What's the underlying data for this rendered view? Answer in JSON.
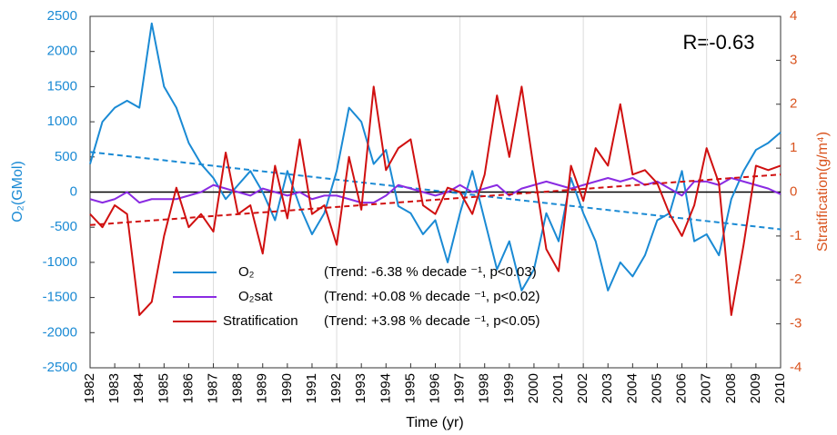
{
  "chart_data": {
    "type": "line",
    "annotation": "R=-0.63",
    "xlabel": "Time (yr)",
    "ylabel": "O₂(GMol)",
    "y2label": "Stratification(g/m⁴)",
    "xlim": [
      1982,
      2010
    ],
    "xticks": [
      1982,
      1983,
      1984,
      1985,
      1986,
      1987,
      1988,
      1989,
      1990,
      1991,
      1992,
      1993,
      1994,
      1995,
      1996,
      1997,
      1998,
      1999,
      2000,
      2001,
      2002,
      2003,
      2004,
      2005,
      2006,
      2007,
      2008,
      2009,
      2010
    ],
    "xgrid": [
      1987,
      1992,
      1997,
      2002,
      2007
    ],
    "ylim": [
      -2500,
      2500
    ],
    "yticks": [
      -2500,
      -2000,
      -1500,
      -1000,
      -500,
      0,
      500,
      1000,
      1500,
      2000,
      2500
    ],
    "y2lim": [
      -4,
      4
    ],
    "y2ticks": [
      -4,
      -3,
      -2,
      -1,
      0,
      1,
      2,
      3,
      4
    ],
    "ycolor": "#1a8ad4",
    "y2color": "#d9531e",
    "x": [
      1982,
      1982.5,
      1983,
      1983.5,
      1984,
      1984.5,
      1985,
      1985.5,
      1986,
      1986.5,
      1987,
      1987.5,
      1988,
      1988.5,
      1989,
      1989.5,
      1990,
      1990.5,
      1991,
      1991.5,
      1992,
      1992.5,
      1993,
      1993.5,
      1994,
      1994.5,
      1995,
      1995.5,
      1996,
      1996.5,
      1997,
      1997.5,
      1998,
      1998.5,
      1999,
      1999.5,
      2000,
      2000.5,
      2001,
      2001.5,
      2002,
      2002.5,
      2003,
      2003.5,
      2004,
      2004.5,
      2005,
      2005.5,
      2006,
      2006.5,
      2007,
      2007.5,
      2008,
      2008.5,
      2009,
      2009.5,
      2010
    ],
    "series": [
      {
        "name": "O₂",
        "color": "#1a8ad4",
        "trend_label": "(Trend: -6.38 % decade ⁻¹, p<0.03)",
        "trend": {
          "x": [
            1982,
            2010
          ],
          "values": [
            570,
            -530
          ]
        },
        "values": [
          400,
          1000,
          1200,
          1300,
          1200,
          2400,
          1500,
          1200,
          700,
          400,
          200,
          -100,
          100,
          300,
          0,
          -400,
          300,
          -200,
          -600,
          -300,
          300,
          1200,
          1000,
          400,
          600,
          -200,
          -300,
          -600,
          -400,
          -1000,
          -300,
          300,
          -400,
          -1100,
          -700,
          -1400,
          -1100,
          -300,
          -700,
          200,
          -300,
          -700,
          -1400,
          -1000,
          -1200,
          -900,
          -400,
          -300,
          300,
          -700,
          -600,
          -900,
          -100,
          300,
          600,
          700,
          850
        ]
      },
      {
        "name": "O₂sat",
        "color": "#8a2be2",
        "trend_label": "(Trend: +0.08 % decade ⁻¹, p<0.02)",
        "values": [
          -100,
          -150,
          -100,
          0,
          -150,
          -100,
          -100,
          -100,
          -50,
          0,
          100,
          50,
          0,
          -50,
          50,
          0,
          -50,
          0,
          -100,
          -50,
          -50,
          -100,
          -150,
          -150,
          -50,
          100,
          50,
          0,
          -50,
          0,
          100,
          0,
          50,
          100,
          -50,
          50,
          100,
          150,
          100,
          50,
          100,
          150,
          200,
          150,
          200,
          100,
          150,
          50,
          -50,
          150,
          150,
          100,
          200,
          150,
          100,
          50,
          -30
        ]
      },
      {
        "name": "Stratification",
        "color": "#d01010",
        "axis": "y2",
        "trend_label": "(Trend: +3.98 % decade ⁻¹, p<0.05)",
        "trend": {
          "x": [
            1982,
            2010
          ],
          "values": [
            -0.75,
            0.4
          ]
        },
        "values": [
          -0.5,
          -0.8,
          -0.3,
          -0.5,
          -2.8,
          -2.5,
          -1.0,
          0.1,
          -0.8,
          -0.5,
          -0.9,
          0.9,
          -0.5,
          -0.3,
          -1.4,
          0.6,
          -0.6,
          1.2,
          -0.5,
          -0.3,
          -1.2,
          0.8,
          -0.4,
          2.4,
          0.5,
          1.0,
          1.2,
          -0.3,
          -0.5,
          0.1,
          0.0,
          -0.5,
          0.4,
          2.2,
          0.8,
          2.4,
          0.5,
          -1.3,
          -1.8,
          0.6,
          -0.2,
          1.0,
          0.6,
          2.0,
          0.4,
          0.5,
          0.2,
          -0.5,
          -1.0,
          -0.3,
          1.0,
          0.2,
          -2.8,
          -1.2,
          0.6,
          0.5,
          0.6
        ]
      }
    ]
  }
}
